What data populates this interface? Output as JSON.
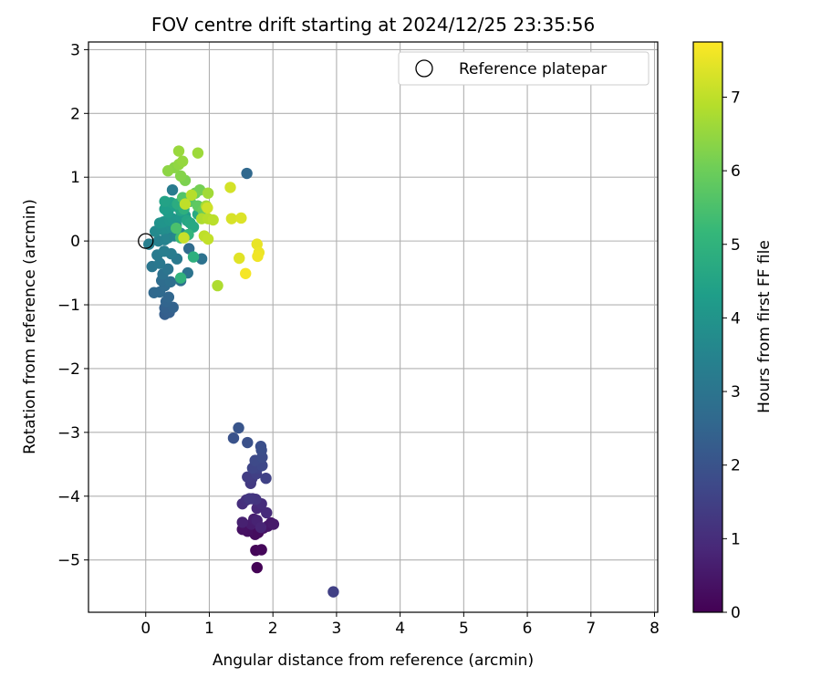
{
  "chart_data": {
    "type": "scatter",
    "title": "FOV centre drift starting at 2024/12/25 23:35:56",
    "xlabel": "Angular distance from reference (arcmin)",
    "ylabel": "Rotation from reference (arcmin)",
    "xlim": [
      -0.9,
      8.05
    ],
    "ylim": [
      -5.82,
      3.12
    ],
    "xticks": [
      0,
      1,
      2,
      3,
      4,
      5,
      6,
      7,
      8
    ],
    "yticks": [
      3,
      2,
      1,
      0,
      -1,
      -2,
      -3,
      -4,
      -5
    ],
    "grid": true,
    "legend": {
      "position": "top-right",
      "entries": [
        {
          "label": "Reference platepar",
          "marker": "open-circle"
        }
      ]
    },
    "reference_point": {
      "x": 0,
      "y": 0
    },
    "colorbar": {
      "label": "Hours from first FF file",
      "range": [
        0,
        7.75
      ],
      "ticks": [
        0,
        1,
        2,
        3,
        4,
        5,
        6,
        7
      ],
      "colormap": "viridis",
      "colors": [
        "#440154",
        "#482878",
        "#3e4989",
        "#31688e",
        "#26828e",
        "#1f9e89",
        "#35b779",
        "#6ece58",
        "#b5de2b",
        "#fde725"
      ]
    },
    "points": [
      [
        1.75,
        -5.12,
        0.05
      ],
      [
        1.73,
        -4.85,
        0.1
      ],
      [
        1.82,
        -4.84,
        0.15
      ],
      [
        1.77,
        -4.57,
        0.2
      ],
      [
        1.72,
        -4.6,
        0.25
      ],
      [
        1.6,
        -4.55,
        0.3
      ],
      [
        1.52,
        -4.52,
        0.35
      ],
      [
        1.85,
        -4.5,
        0.4
      ],
      [
        1.92,
        -4.47,
        0.45
      ],
      [
        1.97,
        -4.42,
        0.5
      ],
      [
        2.01,
        -4.44,
        0.55
      ],
      [
        1.66,
        -4.44,
        0.6
      ],
      [
        1.7,
        -4.36,
        0.65
      ],
      [
        1.52,
        -4.41,
        0.7
      ],
      [
        1.75,
        -4.38,
        0.75
      ],
      [
        1.81,
        -4.49,
        0.8
      ],
      [
        1.75,
        -4.19,
        0.9
      ],
      [
        1.9,
        -4.26,
        0.95
      ],
      [
        1.82,
        -4.12,
        1.0
      ],
      [
        1.52,
        -4.12,
        1.05
      ],
      [
        1.58,
        -4.06,
        1.1
      ],
      [
        1.68,
        -4.04,
        1.15
      ],
      [
        1.73,
        -4.05,
        1.2
      ],
      [
        1.63,
        -4.04,
        1.25
      ],
      [
        1.65,
        -3.8,
        1.3
      ],
      [
        1.67,
        -3.72,
        1.35
      ],
      [
        1.6,
        -3.7,
        1.4
      ],
      [
        1.74,
        -3.65,
        1.5
      ],
      [
        1.89,
        -3.72,
        1.55
      ],
      [
        1.76,
        -3.56,
        1.6
      ],
      [
        1.68,
        -3.56,
        1.65
      ],
      [
        1.83,
        -3.52,
        1.7
      ],
      [
        1.72,
        -3.44,
        1.75
      ],
      [
        1.83,
        -3.39,
        1.8
      ],
      [
        1.82,
        -3.28,
        1.85
      ],
      [
        1.81,
        -3.22,
        1.9
      ],
      [
        1.6,
        -3.16,
        1.95
      ],
      [
        1.38,
        -3.09,
        2.0
      ],
      [
        1.46,
        -2.93,
        2.05
      ],
      [
        2.95,
        -5.5,
        1.5
      ],
      [
        0.3,
        -1.15,
        2.3
      ],
      [
        0.37,
        -1.12,
        2.35
      ],
      [
        0.3,
        -1.05,
        2.4
      ],
      [
        0.43,
        -1.04,
        2.45
      ],
      [
        0.32,
        -0.95,
        2.5
      ],
      [
        0.36,
        -0.88,
        2.55
      ],
      [
        0.13,
        -0.81,
        2.6
      ],
      [
        0.22,
        -0.8,
        2.65
      ],
      [
        0.3,
        -0.7,
        2.7
      ],
      [
        0.25,
        -0.62,
        2.75
      ],
      [
        0.39,
        -0.64,
        2.8
      ],
      [
        0.55,
        -0.62,
        2.85
      ],
      [
        0.27,
        -0.52,
        2.9
      ],
      [
        0.66,
        -0.5,
        2.95
      ],
      [
        0.35,
        -0.44,
        3.0
      ],
      [
        0.1,
        -0.4,
        3.05
      ],
      [
        0.22,
        -0.35,
        3.1
      ],
      [
        0.49,
        -0.28,
        3.15
      ],
      [
        0.88,
        -0.28,
        2.9
      ],
      [
        0.18,
        -0.22,
        3.2
      ],
      [
        0.4,
        -0.2,
        3.25
      ],
      [
        0.29,
        -0.16,
        3.3
      ],
      [
        0.68,
        -0.12,
        2.7
      ],
      [
        0.05,
        -0.05,
        3.35
      ],
      [
        0.2,
        0.0,
        3.4
      ],
      [
        0.3,
        0.02,
        3.45
      ],
      [
        0.35,
        0.05,
        3.5
      ],
      [
        0.45,
        0.08,
        3.55
      ],
      [
        0.5,
        0.1,
        3.6
      ],
      [
        0.55,
        0.12,
        3.65
      ],
      [
        0.15,
        0.15,
        3.7
      ],
      [
        0.25,
        0.18,
        3.75
      ],
      [
        0.32,
        0.2,
        3.8
      ],
      [
        0.4,
        0.22,
        3.85
      ],
      [
        0.48,
        0.25,
        3.9
      ],
      [
        0.22,
        0.28,
        3.95
      ],
      [
        0.28,
        0.3,
        4.0
      ],
      [
        0.38,
        0.32,
        4.05
      ],
      [
        0.42,
        0.35,
        4.1
      ],
      [
        0.55,
        0.38,
        4.15
      ],
      [
        0.62,
        0.4,
        4.2
      ],
      [
        0.35,
        0.45,
        4.25
      ],
      [
        0.3,
        0.5,
        4.3
      ],
      [
        0.45,
        0.55,
        4.35
      ],
      [
        0.4,
        0.6,
        4.4
      ],
      [
        0.3,
        0.62,
        4.45
      ],
      [
        0.55,
        0.48,
        4.5
      ],
      [
        0.65,
        0.32,
        4.55
      ],
      [
        0.7,
        0.28,
        4.6
      ],
      [
        0.75,
        0.22,
        4.65
      ],
      [
        0.82,
        0.42,
        4.7
      ],
      [
        0.5,
        0.58,
        4.8
      ],
      [
        0.6,
        0.5,
        4.9
      ],
      [
        0.42,
        0.8,
        3.2
      ],
      [
        1.59,
        1.06,
        2.6
      ],
      [
        0.75,
        -0.25,
        4.9
      ],
      [
        0.55,
        -0.58,
        5.0
      ],
      [
        0.67,
        0.1,
        5.1
      ],
      [
        0.55,
        0.05,
        5.3
      ],
      [
        0.48,
        0.2,
        5.5
      ],
      [
        0.58,
        0.68,
        5.6
      ],
      [
        0.7,
        0.62,
        5.7
      ],
      [
        0.82,
        0.55,
        5.8
      ],
      [
        0.9,
        0.48,
        5.9
      ],
      [
        0.78,
        0.75,
        6.0
      ],
      [
        0.85,
        0.8,
        6.1
      ],
      [
        0.62,
        0.95,
        6.2
      ],
      [
        0.55,
        1.02,
        6.3
      ],
      [
        0.45,
        1.15,
        6.35
      ],
      [
        0.35,
        1.1,
        6.4
      ],
      [
        0.52,
        1.2,
        6.45
      ],
      [
        0.58,
        1.25,
        6.5
      ],
      [
        0.52,
        1.41,
        6.55
      ],
      [
        0.82,
        1.38,
        6.6
      ],
      [
        0.98,
        0.75,
        6.65
      ],
      [
        0.95,
        0.55,
        6.7
      ],
      [
        0.88,
        0.35,
        6.8
      ],
      [
        0.98,
        0.35,
        6.9
      ],
      [
        1.06,
        0.33,
        6.95
      ],
      [
        0.92,
        0.08,
        7.0
      ],
      [
        0.98,
        0.03,
        7.05
      ],
      [
        0.6,
        0.05,
        7.1
      ],
      [
        1.13,
        -0.7,
        6.8
      ],
      [
        0.72,
        0.72,
        6.9
      ],
      [
        0.62,
        0.58,
        7.0
      ],
      [
        0.97,
        0.52,
        7.2
      ],
      [
        1.33,
        0.84,
        7.25
      ],
      [
        1.35,
        0.35,
        7.3
      ],
      [
        1.5,
        0.36,
        7.35
      ],
      [
        1.47,
        -0.27,
        7.4
      ],
      [
        1.75,
        -0.05,
        7.5
      ],
      [
        1.78,
        -0.18,
        7.55
      ],
      [
        1.76,
        -0.24,
        7.6
      ],
      [
        1.57,
        -0.51,
        7.65
      ]
    ]
  }
}
